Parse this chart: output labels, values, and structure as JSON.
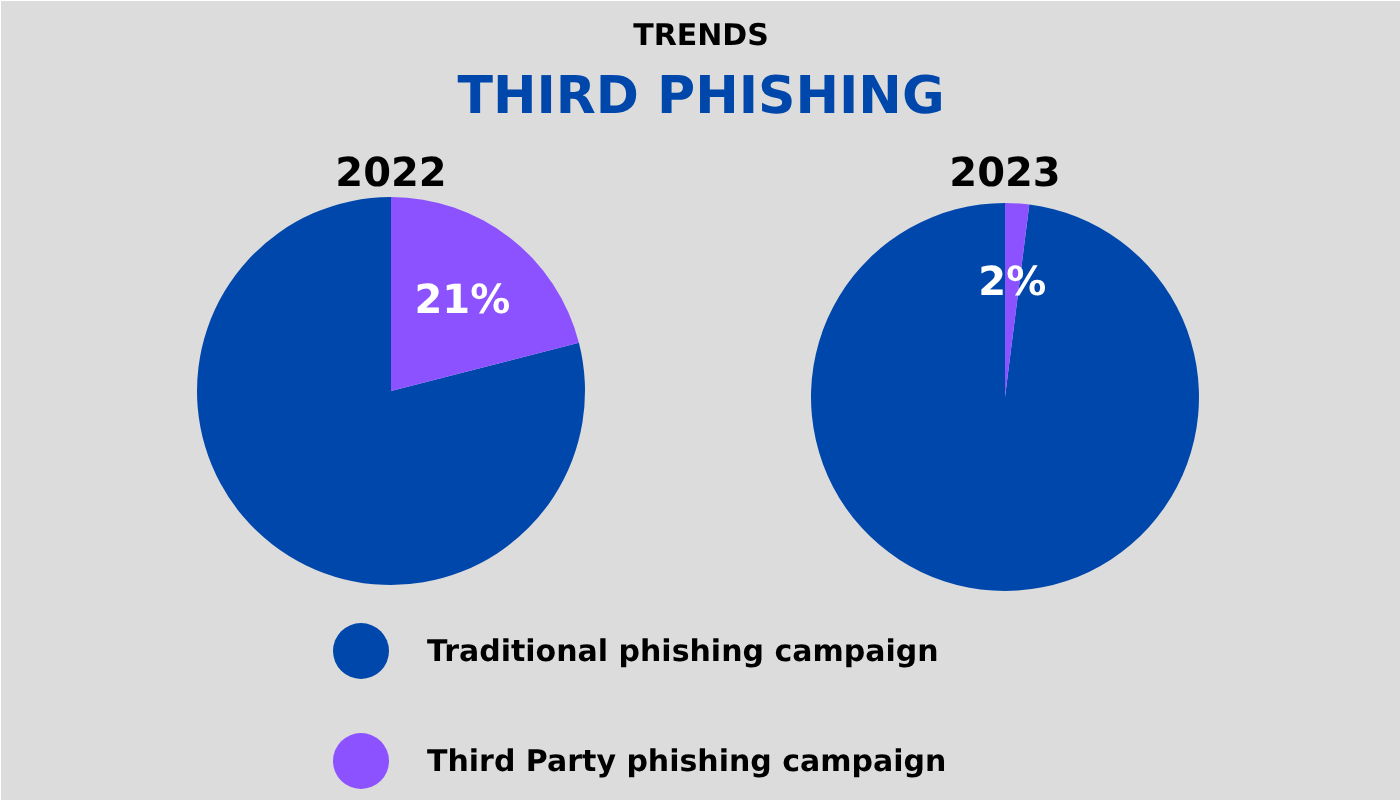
{
  "chart_data": [
    {
      "type": "pie",
      "title": "2022",
      "annotations": [
        "TRENDS",
        "THIRD PHISHING"
      ],
      "categories": [
        "Traditional phishing campaign",
        "Third Party phishing campaign"
      ],
      "values": [
        79,
        21
      ],
      "colors": [
        "#0047ab",
        "#8c52ff"
      ],
      "value_labels": [
        null,
        "21%"
      ],
      "legend": "bottom"
    },
    {
      "type": "pie",
      "title": "2023",
      "categories": [
        null,
        null
      ],
      "values": [
        98,
        2
      ],
      "colors": [
        "#0047ab",
        "#8c52ff"
      ],
      "value_labels": [
        null,
        "2%"
      ]
    }
  ]
}
